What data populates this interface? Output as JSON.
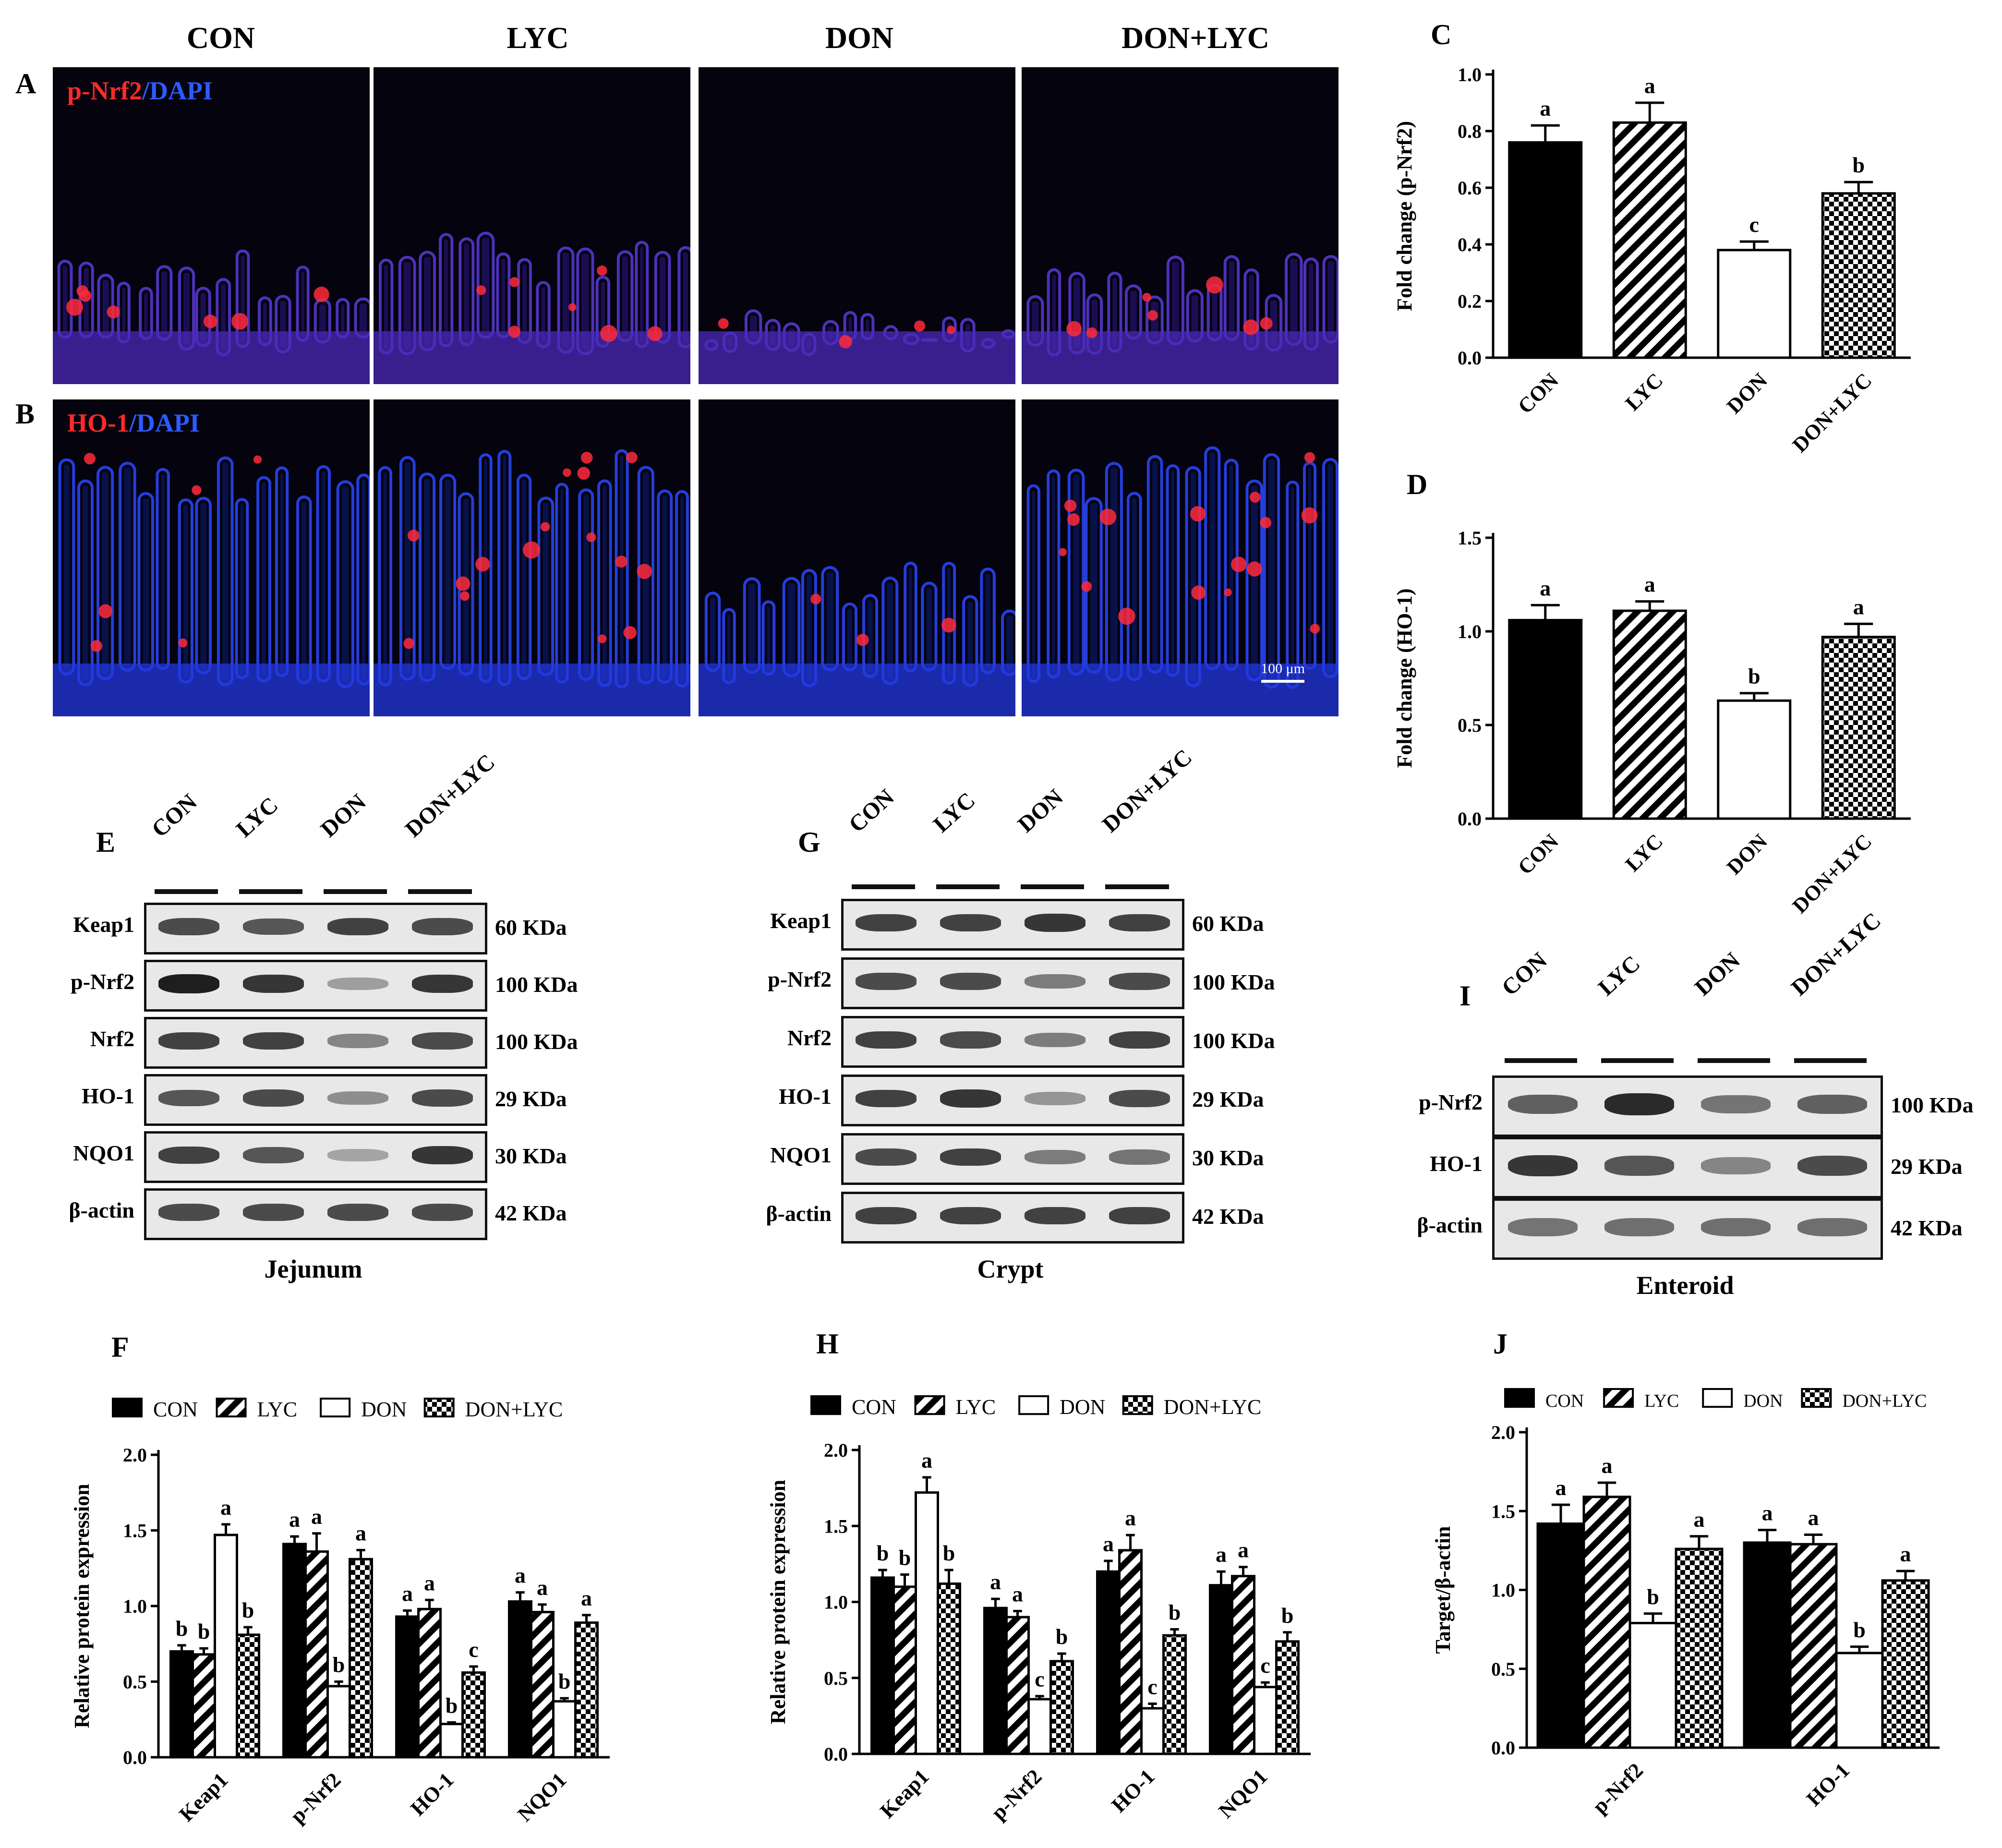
{
  "panels": {
    "A": "A",
    "B": "B",
    "C": "C",
    "D": "D",
    "E": "E",
    "F": "F",
    "G": "G",
    "H": "H",
    "I": "I",
    "J": "J"
  },
  "groups": [
    "CON",
    "LYC",
    "DON",
    "DON+LYC"
  ],
  "microscopy": {
    "row_a_stain": "p-Nrf2",
    "row_a_counter": "/DAPI",
    "row_b_stain": "HO-1",
    "row_b_counter": "/DAPI",
    "scale_bar": "100 μm"
  },
  "blots": {
    "jejunum": {
      "caption": "Jejunum",
      "rows": [
        {
          "name": "Keap1",
          "kda": "60 KDa"
        },
        {
          "name": "p-Nrf2",
          "kda": "100 KDa"
        },
        {
          "name": "Nrf2",
          "kda": "100 KDa"
        },
        {
          "name": "HO-1",
          "kda": "29 KDa"
        },
        {
          "name": "NQO1",
          "kda": "30 KDa"
        },
        {
          "name": "β-actin",
          "kda": "42 KDa"
        }
      ]
    },
    "crypt": {
      "caption": "Crypt",
      "rows": [
        {
          "name": "Keap1",
          "kda": "60 KDa"
        },
        {
          "name": "p-Nrf2",
          "kda": "100 KDa"
        },
        {
          "name": "Nrf2",
          "kda": "100 KDa"
        },
        {
          "name": "HO-1",
          "kda": "29 KDa"
        },
        {
          "name": "NQO1",
          "kda": "30 KDa"
        },
        {
          "name": "β-actin",
          "kda": "42 KDa"
        }
      ]
    },
    "enteroid": {
      "caption": "Enteroid",
      "rows": [
        {
          "name": "p-Nrf2",
          "kda": "100 KDa"
        },
        {
          "name": "HO-1",
          "kda": "29 KDa"
        },
        {
          "name": "β-actin",
          "kda": "42 KDa"
        }
      ]
    }
  },
  "chart_data": [
    {
      "id": "C",
      "type": "bar",
      "ylabel": "Fold change (p-Nrf2)",
      "ylim": [
        0,
        1.0
      ],
      "yticks": [
        "0.0",
        "0.2",
        "0.4",
        "0.6",
        "0.8",
        "1.0"
      ],
      "categories": [
        "CON",
        "LYC",
        "DON",
        "DON+LYC"
      ],
      "values": [
        0.76,
        0.83,
        0.38,
        0.58
      ],
      "errors": [
        0.06,
        0.07,
        0.03,
        0.04
      ],
      "letters": [
        "a",
        "a",
        "c",
        "b"
      ]
    },
    {
      "id": "D",
      "type": "bar",
      "ylabel": "Fold change (HO-1)",
      "ylim": [
        0,
        1.5
      ],
      "yticks": [
        "0.0",
        "0.5",
        "1.0",
        "1.5"
      ],
      "categories": [
        "CON",
        "LYC",
        "DON",
        "DON+LYC"
      ],
      "values": [
        1.06,
        1.11,
        0.63,
        0.97
      ],
      "errors": [
        0.08,
        0.05,
        0.04,
        0.07
      ],
      "letters": [
        "a",
        "a",
        "b",
        "a"
      ]
    },
    {
      "id": "F",
      "type": "bar",
      "ylabel": "Relative protein expression",
      "ylim": [
        0,
        2.0
      ],
      "yticks": [
        "0.0",
        "0.5",
        "1.0",
        "1.5",
        "2.0"
      ],
      "categories": [
        "Keap1",
        "p-Nrf2",
        "HO-1",
        "NQO1"
      ],
      "legend": [
        "CON",
        "LYC",
        "DON",
        "DON+LYC"
      ],
      "series": [
        {
          "name": "CON",
          "values": [
            0.7,
            1.41,
            0.93,
            1.03
          ],
          "errors": [
            0.04,
            0.05,
            0.04,
            0.06
          ],
          "letters": [
            "b",
            "a",
            "a",
            "a"
          ]
        },
        {
          "name": "LYC",
          "values": [
            0.68,
            1.36,
            0.98,
            0.96
          ],
          "errors": [
            0.04,
            0.12,
            0.06,
            0.05
          ],
          "letters": [
            "b",
            "a",
            "a",
            "a"
          ]
        },
        {
          "name": "DON",
          "values": [
            1.47,
            0.47,
            0.22,
            0.37
          ],
          "errors": [
            0.07,
            0.03,
            0.01,
            0.02
          ],
          "letters": [
            "a",
            "b",
            "b",
            "b"
          ]
        },
        {
          "name": "DON+LYC",
          "values": [
            0.81,
            1.31,
            0.56,
            0.89
          ],
          "errors": [
            0.05,
            0.06,
            0.04,
            0.05
          ],
          "letters": [
            "b",
            "a",
            "c",
            "a"
          ]
        }
      ]
    },
    {
      "id": "H",
      "type": "bar",
      "ylabel": "Relative protein expression",
      "ylim": [
        0,
        2.0
      ],
      "yticks": [
        "0.0",
        "0.5",
        "1.0",
        "1.5",
        "2.0"
      ],
      "categories": [
        "Keap1",
        "p-Nrf2",
        "HO-1",
        "NQO1"
      ],
      "legend": [
        "CON",
        "LYC",
        "DON",
        "DON+LYC"
      ],
      "series": [
        {
          "name": "CON",
          "values": [
            1.16,
            0.96,
            1.2,
            1.11
          ],
          "errors": [
            0.05,
            0.06,
            0.07,
            0.09
          ],
          "letters": [
            "b",
            "a",
            "a",
            "a"
          ]
        },
        {
          "name": "LYC",
          "values": [
            1.1,
            0.9,
            1.34,
            1.17
          ],
          "errors": [
            0.08,
            0.04,
            0.1,
            0.06
          ],
          "letters": [
            "b",
            "a",
            "a",
            "a"
          ]
        },
        {
          "name": "DON",
          "values": [
            1.72,
            0.36,
            0.3,
            0.44
          ],
          "errors": [
            0.1,
            0.02,
            0.03,
            0.03
          ],
          "letters": [
            "a",
            "c",
            "c",
            "c"
          ]
        },
        {
          "name": "DON+LYC",
          "values": [
            1.12,
            0.61,
            0.78,
            0.74
          ],
          "errors": [
            0.09,
            0.05,
            0.04,
            0.06
          ],
          "letters": [
            "b",
            "b",
            "b",
            "b"
          ]
        }
      ]
    },
    {
      "id": "J",
      "type": "bar",
      "ylabel": "Target/β-actin",
      "ylim": [
        0,
        2.0
      ],
      "yticks": [
        "0.0",
        "0.5",
        "1.0",
        "1.5",
        "2.0"
      ],
      "categories": [
        "p-Nrf2",
        "HO-1"
      ],
      "legend": [
        "CON",
        "LYC",
        "DON",
        "DON+LYC"
      ],
      "series": [
        {
          "name": "CON",
          "values": [
            1.42,
            1.3
          ],
          "errors": [
            0.12,
            0.08
          ],
          "letters": [
            "a",
            "a"
          ]
        },
        {
          "name": "LYC",
          "values": [
            1.59,
            1.29
          ],
          "errors": [
            0.09,
            0.06
          ],
          "letters": [
            "a",
            "a"
          ]
        },
        {
          "name": "DON",
          "values": [
            0.79,
            0.6
          ],
          "errors": [
            0.06,
            0.04
          ],
          "letters": [
            "b",
            "b"
          ]
        },
        {
          "name": "DON+LYC",
          "values": [
            1.26,
            1.06
          ],
          "errors": [
            0.08,
            0.06
          ],
          "letters": [
            "a",
            "a"
          ]
        }
      ]
    }
  ],
  "colors": {
    "con": "#000000",
    "dapi": "#2c5bff",
    "stain": "#ff2a2a",
    "tissue_bg": "#04030e"
  }
}
